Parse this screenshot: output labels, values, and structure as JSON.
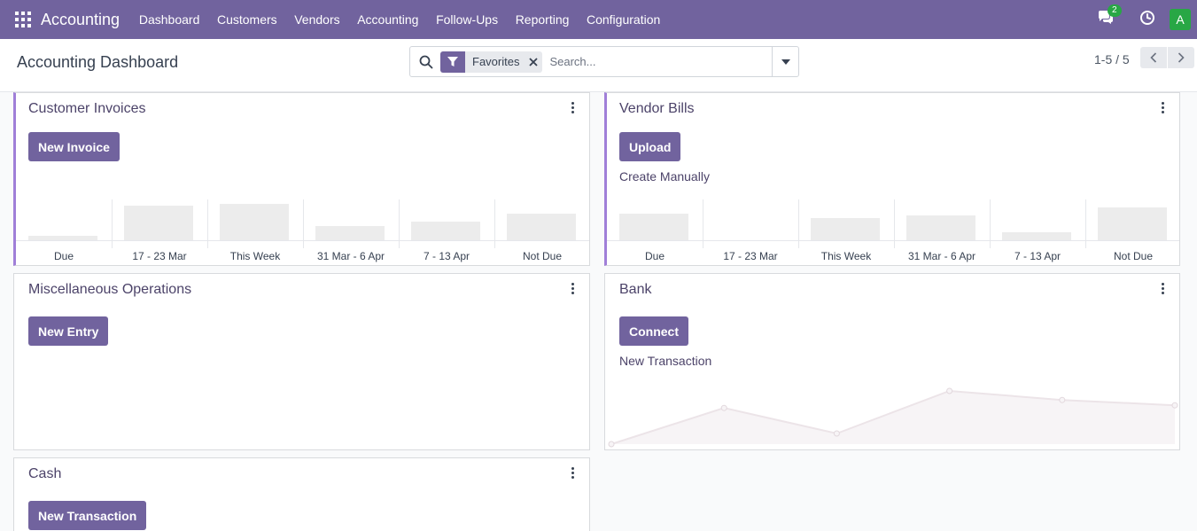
{
  "app": {
    "name": "Accounting"
  },
  "nav": {
    "items": [
      "Dashboard",
      "Customers",
      "Vendors",
      "Accounting",
      "Follow-Ups",
      "Reporting",
      "Configuration"
    ],
    "message_count": "2",
    "user_initial": "A"
  },
  "control_panel": {
    "title": "Accounting Dashboard",
    "search": {
      "facet": "Favorites",
      "placeholder": "Search..."
    },
    "pager": "1-5 / 5"
  },
  "cards": {
    "customer_invoices": {
      "title": "Customer Invoices",
      "button": "New Invoice",
      "chart_labels": [
        "Due",
        "17 - 23 Mar",
        "This Week",
        "31 Mar - 6 Apr",
        "7 - 13 Apr",
        "Not Due"
      ],
      "bar_values": [
        0.1,
        0.85,
        0.9,
        0.35,
        0.45,
        0.65
      ]
    },
    "vendor_bills": {
      "title": "Vendor Bills",
      "button": "Upload",
      "link": "Create Manually",
      "chart_labels": [
        "Due",
        "17 - 23 Mar",
        "This Week",
        "31 Mar - 6 Apr",
        "7 - 13 Apr",
        "Not Due"
      ],
      "bar_values": [
        0.65,
        0,
        0.55,
        0.6,
        0.2,
        0.8
      ]
    },
    "misc": {
      "title": "Miscellaneous Operations",
      "button": "New Entry"
    },
    "bank": {
      "title": "Bank",
      "button": "Connect",
      "link": "New Transaction",
      "line_values": [
        0.0,
        0.68,
        0.2,
        1.0,
        0.83,
        0.73
      ]
    },
    "cash": {
      "title": "Cash",
      "button": "New Transaction"
    }
  },
  "colors": {
    "brand": "#71639e",
    "accent": "#a07fd8",
    "title": "#4c4369",
    "badge": "#28a745"
  }
}
